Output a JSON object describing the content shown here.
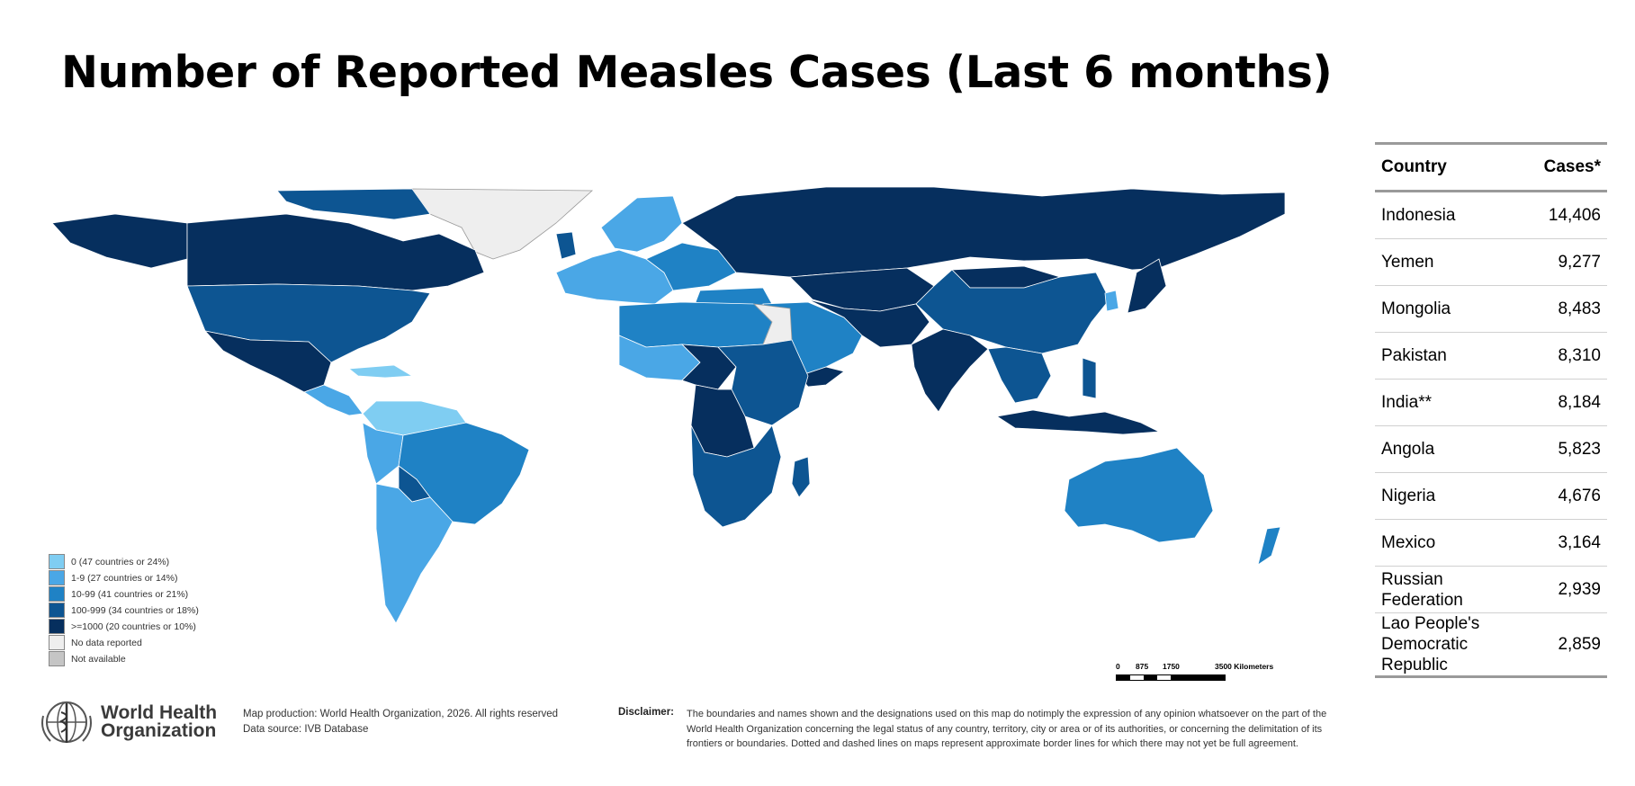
{
  "title": "Number of Reported Measles Cases (Last 6 months)",
  "legend": [
    {
      "label": "0 (47 countries or 24%)",
      "color": "#7fcdf2"
    },
    {
      "label": "1-9 (27 countries or 14%)",
      "color": "#4aa7e6"
    },
    {
      "label": "10-99 (41 countries or 21%)",
      "color": "#1f82c5"
    },
    {
      "label": "100-999 (34 countries or 18%)",
      "color": "#0d5592"
    },
    {
      "label": ">=1000 (20 countries or 10%)",
      "color": "#062f5e"
    },
    {
      "label": "No data reported",
      "color": "#eeeeee"
    },
    {
      "label": "Not available",
      "color": "#c5c5c5"
    }
  ],
  "scale": {
    "ticks": [
      "0",
      "875",
      "1750",
      "3500 Kilometers"
    ]
  },
  "who": {
    "line1": "World Health",
    "line2": "Organization"
  },
  "credits": {
    "production": "Map production: World Health Organization, 2026. All rights reserved",
    "source": "Data source: IVB Database"
  },
  "disclaimer": {
    "label": "Disclaimer:",
    "text": "The boundaries and names shown and the designations used on this map do notimply the expression of any opinion whatsoever on the part of the World Health Organization concerning the legal status of any country, territory, city or area or of its authorities, or concerning the delimitation of its frontiers or boundaries. Dotted and dashed lines on maps represent approximate border lines for which there may not yet be full agreement."
  },
  "table": {
    "header_country": "Country",
    "header_cases": "Cases*",
    "rows": [
      {
        "country": "Indonesia",
        "cases": "14,406"
      },
      {
        "country": "Yemen",
        "cases": "9,277"
      },
      {
        "country": "Mongolia",
        "cases": "8,483"
      },
      {
        "country": "Pakistan",
        "cases": "8,310"
      },
      {
        "country": "India**",
        "cases": "8,184"
      },
      {
        "country": "Angola",
        "cases": "5,823"
      },
      {
        "country": "Nigeria",
        "cases": "4,676"
      },
      {
        "country": "Mexico",
        "cases": "3,164"
      },
      {
        "country": "Russian Federation",
        "cases": "2,939"
      },
      {
        "country": "Lao People's Democratic Republic",
        "cases": "2,859"
      }
    ]
  }
}
